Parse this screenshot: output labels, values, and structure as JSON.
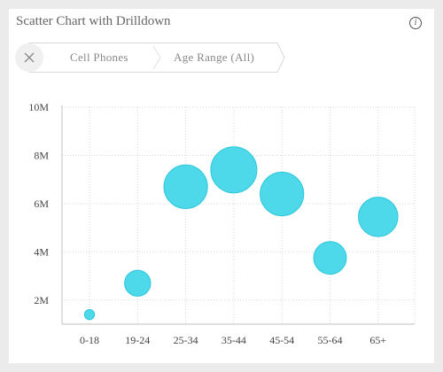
{
  "card": {
    "title": "Scatter Chart with Drilldown",
    "info_icon": "info-icon"
  },
  "breadcrumb": {
    "close_icon": "close-icon",
    "items": [
      {
        "label": "Cell Phones"
      },
      {
        "label": "Age Range (All)"
      }
    ]
  },
  "colors": {
    "bubble_fill": "#4dd9ea",
    "bubble_stroke": "#2ec6db",
    "grid": "#d9d9d9",
    "axis": "#c0c0c0"
  },
  "chart_data": {
    "type": "scatter",
    "title": "",
    "xlabel": "",
    "ylabel": "",
    "categories": [
      "0-18",
      "19-24",
      "25-34",
      "35-44",
      "45-54",
      "55-64",
      "65+"
    ],
    "values": [
      1400000,
      2700000,
      6700000,
      7400000,
      6400000,
      3750000,
      5450000
    ],
    "bubble_size_relative": [
      0.12,
      0.31,
      0.52,
      0.55,
      0.52,
      0.39,
      0.47
    ],
    "ylim": [
      1000000,
      10000000
    ],
    "y_ticks": [
      {
        "value": 2000000,
        "label": "2M"
      },
      {
        "value": 4000000,
        "label": "4M"
      },
      {
        "value": 6000000,
        "label": "6M"
      },
      {
        "value": 8000000,
        "label": "8M"
      },
      {
        "value": 10000000,
        "label": "10M"
      }
    ],
    "grid": true,
    "grid_style": "dotted",
    "legend": "none"
  }
}
